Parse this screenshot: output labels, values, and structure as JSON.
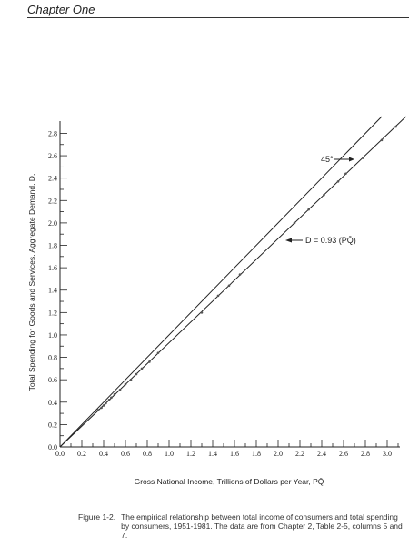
{
  "page": {
    "chapter_header": "Chapter One"
  },
  "figure": {
    "label": "Figure 1-2.",
    "caption": "The empirical relationship between total income of consumers and total spending by consumers, 1951-1981. The data are from Chapter 2, Table 2-5, columns 5 and 7."
  },
  "chart_data": {
    "type": "scatter",
    "title": "",
    "xlabel": "Gross National Income, Trillions of Dollars per Year, PQ̄",
    "ylabel": "Total Spending for Goods and Services, Aggregate Demand, D.",
    "xlim": [
      0,
      3.2
    ],
    "ylim": [
      0,
      2.95
    ],
    "x_ticks": [
      "0.0",
      "0.2",
      "0.4",
      "0.6",
      "0.8",
      "1.0",
      "1.2",
      "1.4",
      "1.6",
      "1.8",
      "2.0",
      "2.2",
      "2.4",
      "2.6",
      "2.8",
      "3.0"
    ],
    "y_ticks": [
      "0.0",
      "0.2",
      "0.4",
      "0.6",
      "0.8",
      "1.0",
      "1.2",
      "1.4",
      "1.6",
      "1.8",
      "2.0",
      "2.2",
      "2.4",
      "2.6",
      "2.8"
    ],
    "grid": false,
    "annotations": [
      {
        "text": "45°",
        "target_line": "45-degree"
      },
      {
        "text": "D = 0.93 (PQ̄)",
        "target_line": "fit"
      }
    ],
    "lines": [
      {
        "id": "45-degree",
        "slope": 1.0
      },
      {
        "id": "fit",
        "slope": 0.93
      }
    ],
    "series": [
      {
        "x": [
          0.35,
          0.38,
          0.4,
          0.42,
          0.45,
          0.47,
          0.5,
          0.55,
          0.6,
          0.65,
          0.7,
          0.75,
          0.82,
          0.9,
          1.3,
          1.45,
          1.55,
          1.65,
          2.15,
          2.28,
          2.42,
          2.55,
          2.62,
          2.78,
          2.95,
          3.08
        ],
        "y": [
          0.33,
          0.35,
          0.37,
          0.39,
          0.42,
          0.44,
          0.47,
          0.51,
          0.56,
          0.6,
          0.65,
          0.7,
          0.76,
          0.84,
          1.2,
          1.35,
          1.44,
          1.54,
          2.0,
          2.12,
          2.25,
          2.37,
          2.44,
          2.58,
          2.74,
          2.86
        ]
      }
    ]
  }
}
